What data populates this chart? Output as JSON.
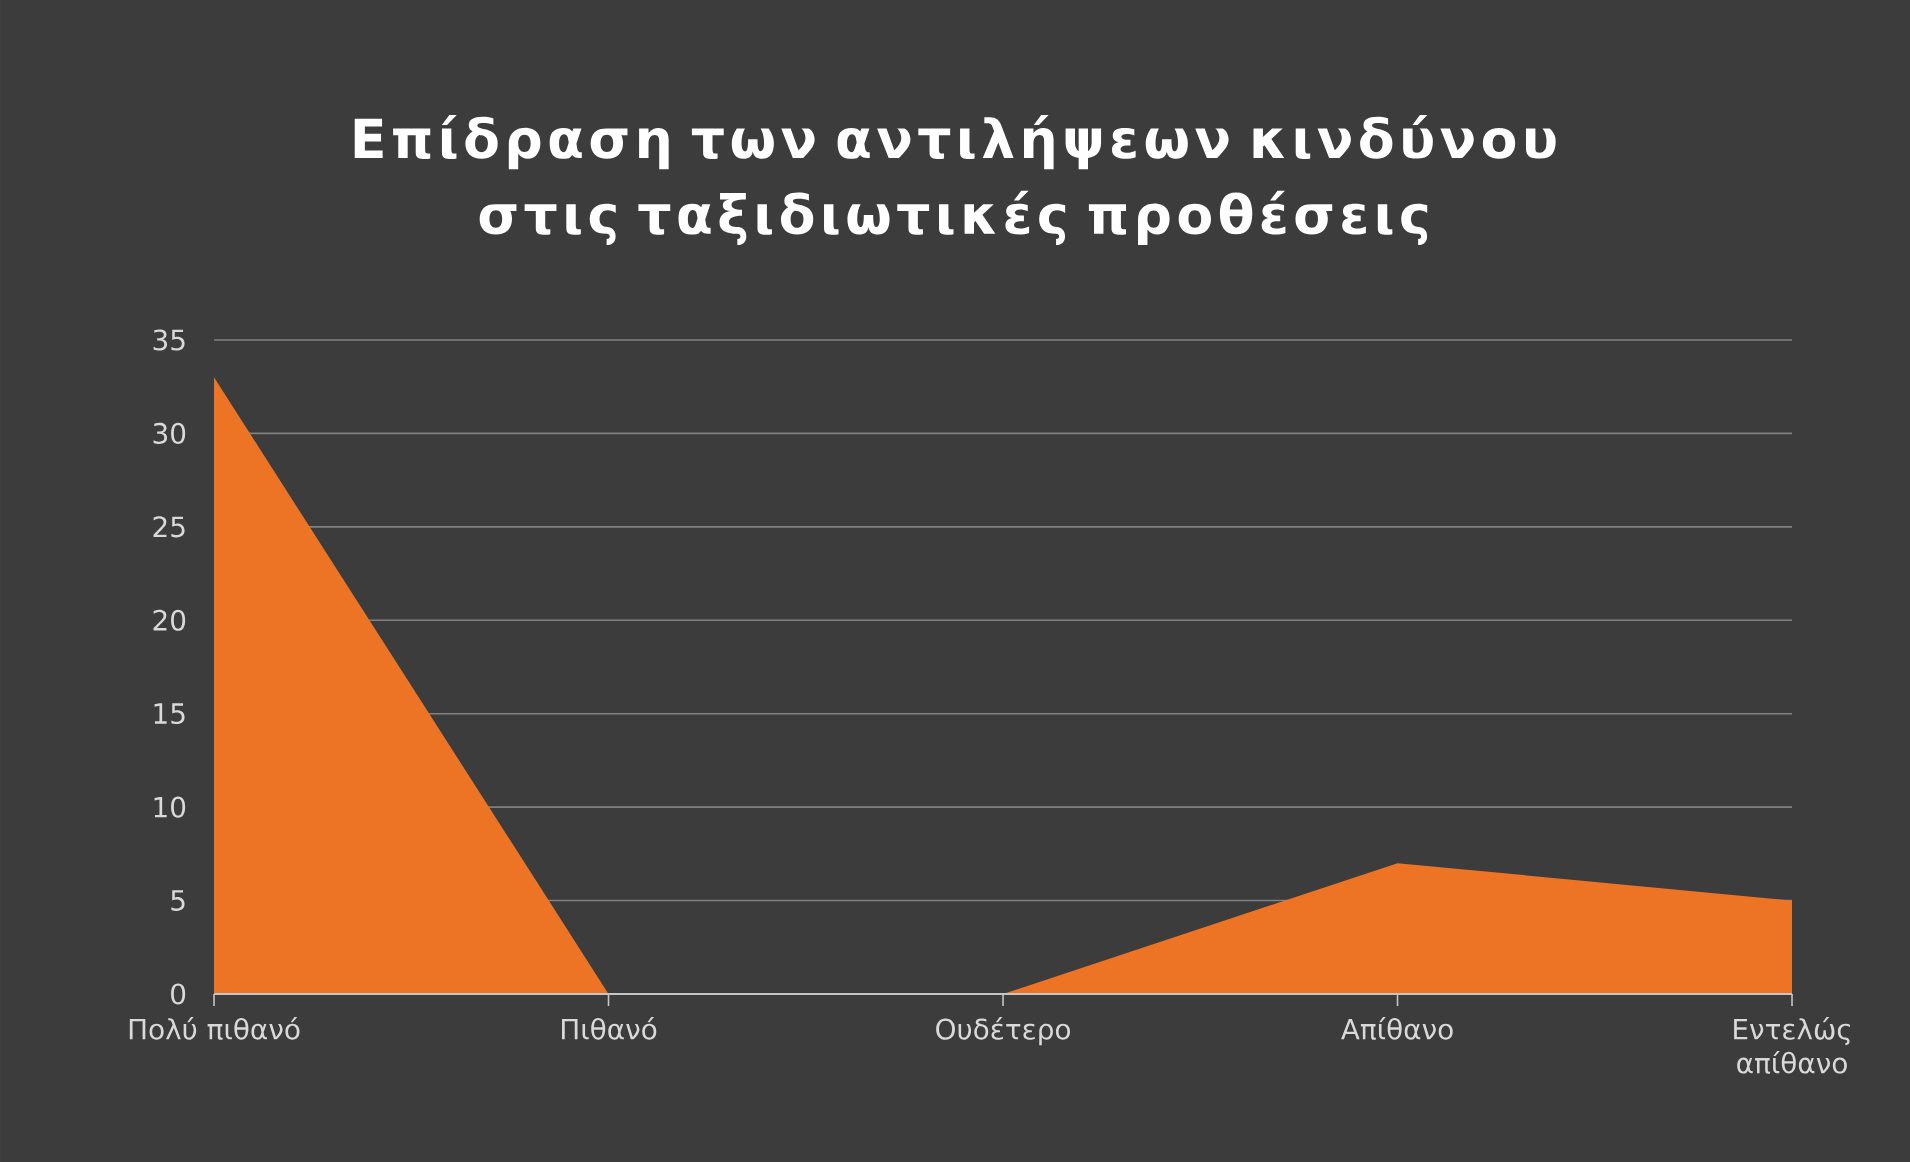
{
  "chart_data": {
    "type": "area",
    "title": "Επίδραση των αντιλήψεων κινδύνου στις ταξιδιωτικές προθέσεις",
    "categories": [
      "Πολύ πιθανό",
      "Πιθανό",
      "Ουδέτερο",
      "Απίθανο",
      "Εντελώς απίθανο"
    ],
    "values": [
      33,
      0,
      0,
      7,
      5
    ],
    "color": "#ec7424",
    "ylim": [
      0,
      35
    ],
    "yticks": [
      0,
      5,
      10,
      15,
      20,
      25,
      30,
      35
    ],
    "grid": "y"
  }
}
